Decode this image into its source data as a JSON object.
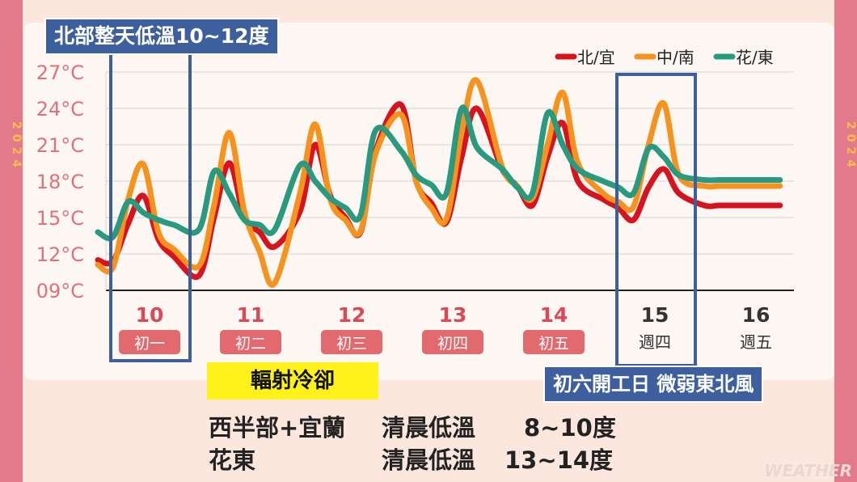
{
  "year_text": "2024",
  "title": "北部整天低溫10~12度",
  "callout": "初六開工日 微弱東北風",
  "highlight": "輻射冷卻",
  "rows": [
    {
      "region": "西半部+宜蘭",
      "label": "清晨低溫",
      "value": "8~10度"
    },
    {
      "region": "花東",
      "label": "清晨低溫",
      "value": "13~14度"
    }
  ],
  "watermark": "WEATHER",
  "colors": {
    "north": "#d6131f",
    "central": "#f6931e",
    "east": "#2a9a7f",
    "blue": "#3e5f9e",
    "pink": "#e06a6e"
  },
  "chart_data": {
    "type": "line",
    "ylim": [
      9,
      27
    ],
    "y_ticks": [
      "27°C",
      "24°C",
      "21°C",
      "18°C",
      "15°C",
      "12°C",
      "09°C"
    ],
    "y_values": [
      27,
      24,
      21,
      18,
      15,
      12,
      9
    ],
    "days": [
      {
        "date": "10",
        "sub": "初一",
        "pink": true
      },
      {
        "date": "11",
        "sub": "初二",
        "pink": true
      },
      {
        "date": "12",
        "sub": "初三",
        "pink": true
      },
      {
        "date": "13",
        "sub": "初四",
        "pink": true
      },
      {
        "date": "14",
        "sub": "初五",
        "pink": true
      },
      {
        "date": "15",
        "sub": "週四",
        "pink": false
      },
      {
        "date": "16",
        "sub": "週五",
        "pink": false
      }
    ],
    "x": [
      0,
      0.15,
      0.3,
      0.45,
      0.6,
      0.75,
      1,
      1.15,
      1.3,
      1.45,
      1.6,
      1.75,
      2,
      2.15,
      2.3,
      2.45,
      2.6,
      2.75,
      3,
      3.15,
      3.3,
      3.45,
      3.6,
      3.75,
      4,
      4.15,
      4.3,
      4.45,
      4.6,
      4.75,
      5,
      5.15,
      5.3,
      5.45,
      5.6,
      5.75,
      6,
      6.15,
      6.3,
      6.45,
      6.6,
      6.75
    ],
    "series": [
      {
        "name": "北/宜",
        "color": "#d6131f",
        "values": [
          11.5,
          11.4,
          14.5,
          16.8,
          13.2,
          11.8,
          10.2,
          15.0,
          19.5,
          15.0,
          13.8,
          12.6,
          15.5,
          21.0,
          16.8,
          15.0,
          13.8,
          20.5,
          24.3,
          18.0,
          16.2,
          14.6,
          20.0,
          24.0,
          19.0,
          17.6,
          16.0,
          20.0,
          22.8,
          18.0,
          16.5,
          15.8,
          14.8,
          17.5,
          19.0,
          17.0,
          16.0,
          16.0,
          16.0,
          16.0,
          16.0,
          16.0
        ]
      },
      {
        "name": "中/南",
        "color": "#f6931e",
        "values": [
          11.1,
          10.9,
          16.5,
          19.4,
          13.8,
          12.4,
          11.0,
          16.0,
          22.0,
          15.5,
          12.2,
          9.6,
          17.0,
          22.7,
          16.5,
          14.8,
          13.9,
          20.3,
          23.5,
          18.0,
          15.8,
          14.9,
          22.0,
          26.3,
          19.2,
          17.6,
          16.6,
          21.0,
          25.3,
          19.5,
          17.0,
          16.3,
          15.9,
          21.0,
          24.4,
          18.5,
          17.6,
          17.6,
          17.6,
          17.6,
          17.6,
          17.6
        ]
      },
      {
        "name": "花/東",
        "color": "#2a9a7f",
        "values": [
          13.8,
          13.4,
          16.3,
          15.4,
          14.8,
          14.4,
          14.0,
          18.8,
          17.0,
          14.8,
          14.4,
          14.0,
          19.3,
          18.0,
          16.6,
          15.8,
          15.2,
          22.2,
          20.5,
          18.5,
          17.7,
          17.0,
          24.0,
          20.8,
          19.0,
          17.5,
          17.0,
          23.6,
          21.0,
          19.0,
          18.0,
          17.5,
          17.0,
          20.7,
          20.0,
          18.5,
          18.1,
          18.1,
          18.1,
          18.1,
          18.1,
          18.1
        ]
      }
    ],
    "highlight_days": [
      0,
      5
    ]
  }
}
